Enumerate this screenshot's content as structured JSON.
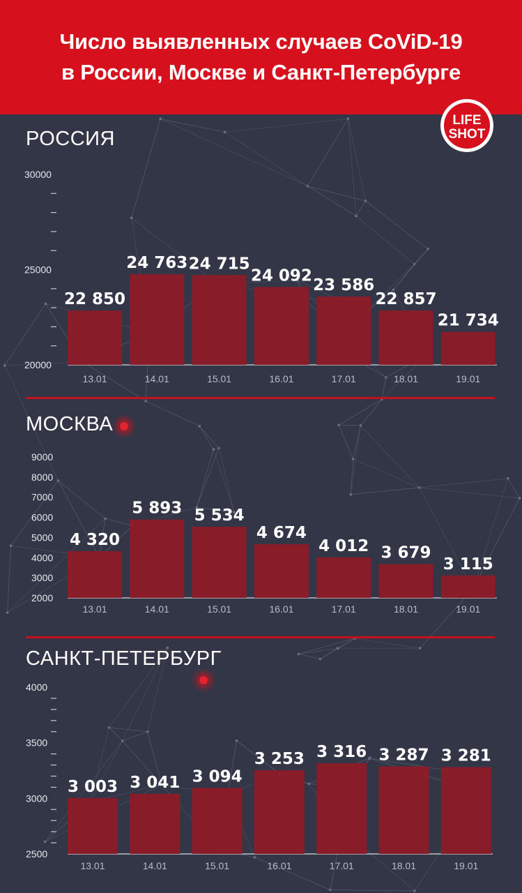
{
  "header": {
    "title_line1": "Число выявленных случаев CoViD-19",
    "title_line2": "в России, Москве и Санкт-Петербурге"
  },
  "logo": {
    "top": "LIFE",
    "bottom": "SHOT",
    "color": "#d7101d"
  },
  "colors": {
    "background": "#333647",
    "accent": "#d7101d",
    "bar": "#8f1a27"
  },
  "chart_data": [
    {
      "type": "bar",
      "title": "РОССИЯ",
      "categories": [
        "13.01",
        "14.01",
        "15.01",
        "16.01",
        "17.01",
        "18.01",
        "19.01"
      ],
      "values": [
        22850,
        24763,
        24715,
        24092,
        23586,
        22857,
        21734
      ],
      "value_labels": [
        "22 850",
        "24 763",
        "24 715",
        "24 092",
        "23 586",
        "22 857",
        "21 734"
      ],
      "ylim": [
        20000,
        30000
      ],
      "y_tick_labels": [
        "20000",
        "25000",
        "30000"
      ],
      "minor_ticks_per_major": 5
    },
    {
      "type": "bar",
      "title": "МОСКВА",
      "categories": [
        "13.01",
        "14.01",
        "15.01",
        "16.01",
        "17.01",
        "18.01",
        "19.01"
      ],
      "values": [
        4320,
        5893,
        5534,
        4674,
        4012,
        3679,
        3115
      ],
      "value_labels": [
        "4 320",
        "5 893",
        "5 534",
        "4 674",
        "4 012",
        "3 679",
        "3 115"
      ],
      "ylim": [
        2000,
        9000
      ],
      "y_tick_labels": [
        "2000",
        "3000",
        "4000",
        "5000",
        "6000",
        "7000",
        "8000",
        "9000"
      ],
      "minor_ticks_per_major": 1
    },
    {
      "type": "bar",
      "title": "САНКТ-ПЕТЕРБУРГ",
      "categories": [
        "13.01",
        "14.01",
        "15.01",
        "16.01",
        "17.01",
        "18.01",
        "19.01"
      ],
      "values": [
        3003,
        3041,
        3094,
        3253,
        3316,
        3287,
        3281
      ],
      "value_labels": [
        "3 003",
        "3 041",
        "3 094",
        "3 253",
        "3 316",
        "3 287",
        "3 281"
      ],
      "ylim": [
        2500,
        4000
      ],
      "y_tick_labels": [
        "2500",
        "3000",
        "3500",
        "4000"
      ],
      "minor_ticks_per_major": 5
    }
  ]
}
